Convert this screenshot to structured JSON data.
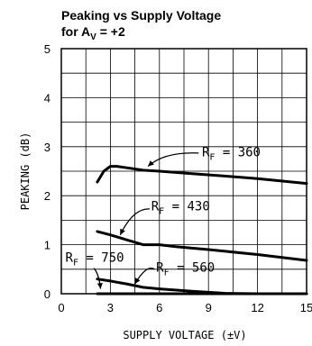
{
  "title": {
    "line1": "Peaking vs Supply Voltage",
    "line2_prefix": "for A",
    "line2_sub": "V",
    "line2_suffix": " = +2"
  },
  "chart_data": {
    "type": "line",
    "xlabel": "SUPPLY VOLTAGE (±V)",
    "ylabel": "PEAKING (dB)",
    "xlim": [
      0,
      15
    ],
    "ylim": [
      0,
      5
    ],
    "x_ticks": [
      "0",
      "3",
      "6",
      "9",
      "12",
      "15"
    ],
    "y_ticks": [
      "0",
      "1",
      "2",
      "3",
      "4",
      "5"
    ],
    "grid": true,
    "series": [
      {
        "name": "RF = 360",
        "x": [
          2.2,
          2.6,
          3.0,
          3.4,
          4.0,
          5.0,
          6.0,
          8.0,
          10.0,
          12.0,
          15.0
        ],
        "y": [
          2.28,
          2.5,
          2.6,
          2.6,
          2.57,
          2.52,
          2.5,
          2.45,
          2.4,
          2.35,
          2.25
        ]
      },
      {
        "name": "RF = 430",
        "x": [
          2.2,
          3.0,
          4.0,
          5.0,
          6.0,
          7.0,
          9.0,
          12.0,
          15.0
        ],
        "y": [
          1.27,
          1.2,
          1.1,
          1.0,
          1.0,
          0.96,
          0.9,
          0.8,
          0.68
        ]
      },
      {
        "name": "RF = 560",
        "x": [
          2.2,
          3.0,
          4.0,
          5.0,
          6.0,
          8.0,
          10.0,
          12.0,
          15.0
        ],
        "y": [
          0.3,
          0.26,
          0.2,
          0.13,
          0.1,
          0.05,
          0.01,
          0.0,
          0.0
        ]
      },
      {
        "name": "RF = 750",
        "x": [
          2.2,
          15.0
        ],
        "y": [
          0.0,
          0.0
        ]
      }
    ],
    "labels": [
      {
        "series": "RF = 360",
        "prefix": "R",
        "sub": "F",
        "value": " = 360"
      },
      {
        "series": "RF = 430",
        "prefix": "R",
        "sub": "F",
        "value": " = 430"
      },
      {
        "series": "RF = 560",
        "prefix": "R",
        "sub": "F",
        "value": " = 560"
      },
      {
        "series": "RF = 750",
        "prefix": "R",
        "sub": "F",
        "value": " = 750"
      }
    ]
  }
}
